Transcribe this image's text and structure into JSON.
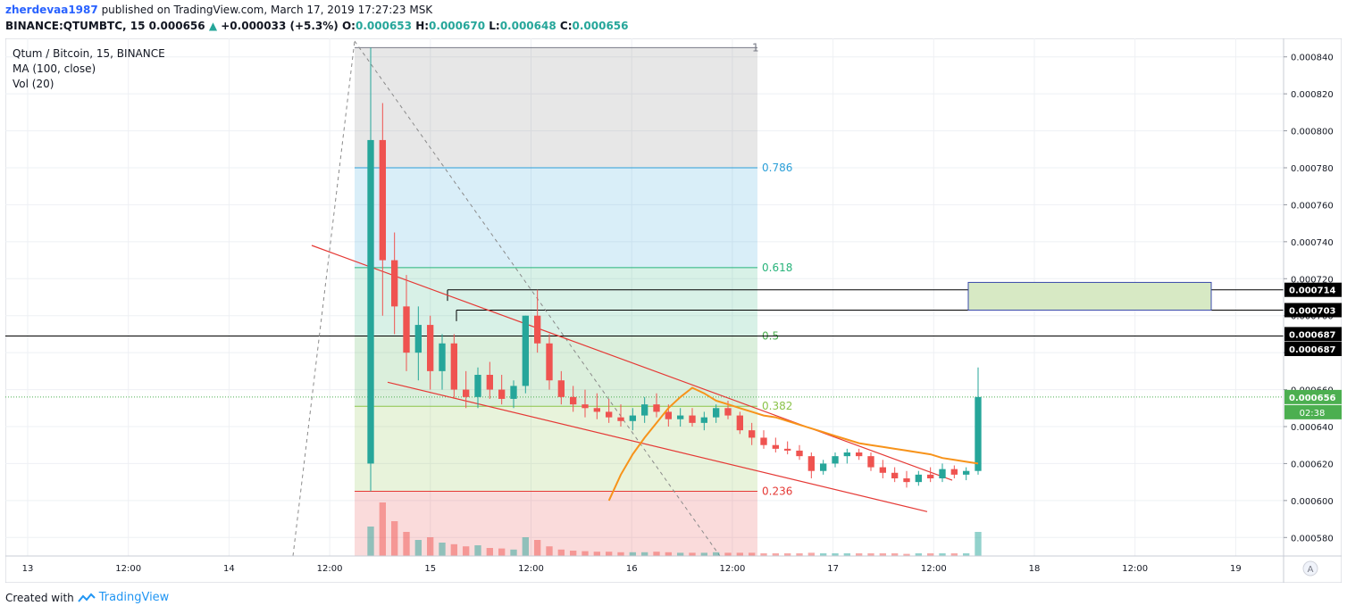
{
  "header": {
    "author": "zherdevaa1987",
    "published": "published on TradingView.com, March 17, 2019 17:27:23 MSK",
    "symbol": "BINANCE:QTUMBTC, 15",
    "last": "0.000656",
    "change_arrow": "▲",
    "change": "+0.000033 (+5.3%)",
    "o_label": "O:",
    "o": "0.000653",
    "h_label": "H:",
    "h": "0.000670",
    "l_label": "L:",
    "l": "0.000648",
    "c_label": "C:",
    "c": "0.000656"
  },
  "legend": {
    "title": "Qtum / Bitcoin, 15, BINANCE",
    "ma": "MA (100, close)",
    "vol": "Vol (20)"
  },
  "footer": {
    "created_with": "Created with",
    "brand": "TradingView"
  },
  "colors": {
    "up": "#26a69a",
    "down": "#ef5350",
    "ma": "#f7931a",
    "fib_0786": "#2b9fd8",
    "fib_0618": "#27b37a",
    "fib_05": "#4caf50",
    "fib_0382": "#8bc34a",
    "fib_0236": "#e53935",
    "trendline": "#e53935",
    "price_tag": "#4caf50",
    "box_fill": "#d7e9c4",
    "box_border": "#3949ab"
  },
  "chart_data": {
    "type": "candlestick",
    "ylim": [
      0.00057,
      0.00085
    ],
    "x_ticks": [
      "13",
      "12:00",
      "14",
      "12:00",
      "15",
      "12:00",
      "16",
      "12:00",
      "17",
      "12:00",
      "18",
      "12:00",
      "19"
    ],
    "y_ticks": [
      "0.000840",
      "0.000820",
      "0.000800",
      "0.000780",
      "0.000760",
      "0.000740",
      "0.000720",
      "0.000700",
      "0.000680",
      "0.000660",
      "0.000640",
      "0.000620",
      "0.000600",
      "0.000580"
    ],
    "fib_levels": [
      {
        "label": "1",
        "value": 0.000845
      },
      {
        "label": "0.786",
        "value": 0.00078
      },
      {
        "label": "0.618",
        "value": 0.000726
      },
      {
        "label": "0.5",
        "value": 0.000689
      },
      {
        "label": "0.382",
        "value": 0.000651
      },
      {
        "label": "0.236",
        "value": 0.000605
      }
    ],
    "horizontal_levels": [
      "0.000714",
      "0.000703",
      "0.000687",
      "0.000687"
    ],
    "current_price": {
      "value": 0.000656,
      "label": "0.000656",
      "countdown": "02:38"
    },
    "target_box": {
      "from": 0.000703,
      "to": 0.000714
    },
    "ohlc": [
      {
        "o": 0.00062,
        "h": 0.000845,
        "l": 0.000605,
        "c": 0.000795
      },
      {
        "o": 0.000795,
        "h": 0.000815,
        "l": 0.0007,
        "c": 0.00073
      },
      {
        "o": 0.00073,
        "h": 0.000745,
        "l": 0.00069,
        "c": 0.000705
      },
      {
        "o": 0.000705,
        "h": 0.000722,
        "l": 0.00067,
        "c": 0.00068
      },
      {
        "o": 0.00068,
        "h": 0.000705,
        "l": 0.000665,
        "c": 0.000695
      },
      {
        "o": 0.000695,
        "h": 0.0007,
        "l": 0.00066,
        "c": 0.00067
      },
      {
        "o": 0.00067,
        "h": 0.00069,
        "l": 0.00066,
        "c": 0.000685
      },
      {
        "o": 0.000685,
        "h": 0.00069,
        "l": 0.000655,
        "c": 0.00066
      },
      {
        "o": 0.00066,
        "h": 0.00067,
        "l": 0.00065,
        "c": 0.000656
      },
      {
        "o": 0.000656,
        "h": 0.000672,
        "l": 0.00065,
        "c": 0.000668
      },
      {
        "o": 0.000668,
        "h": 0.000675,
        "l": 0.000655,
        "c": 0.00066
      },
      {
        "o": 0.00066,
        "h": 0.000668,
        "l": 0.000652,
        "c": 0.000655
      },
      {
        "o": 0.000655,
        "h": 0.000665,
        "l": 0.00065,
        "c": 0.000662
      },
      {
        "o": 0.000662,
        "h": 0.0007,
        "l": 0.000658,
        "c": 0.0007
      },
      {
        "o": 0.0007,
        "h": 0.000714,
        "l": 0.00068,
        "c": 0.000685
      },
      {
        "o": 0.000685,
        "h": 0.00069,
        "l": 0.00066,
        "c": 0.000665
      },
      {
        "o": 0.000665,
        "h": 0.00067,
        "l": 0.000652,
        "c": 0.000656
      },
      {
        "o": 0.000656,
        "h": 0.000662,
        "l": 0.000648,
        "c": 0.000652
      },
      {
        "o": 0.000652,
        "h": 0.00066,
        "l": 0.000645,
        "c": 0.00065
      },
      {
        "o": 0.00065,
        "h": 0.000658,
        "l": 0.000644,
        "c": 0.000648
      },
      {
        "o": 0.000648,
        "h": 0.000655,
        "l": 0.000642,
        "c": 0.000645
      },
      {
        "o": 0.000645,
        "h": 0.000652,
        "l": 0.00064,
        "c": 0.000643
      },
      {
        "o": 0.000643,
        "h": 0.00065,
        "l": 0.000638,
        "c": 0.000646
      },
      {
        "o": 0.000646,
        "h": 0.000656,
        "l": 0.000642,
        "c": 0.000652
      },
      {
        "o": 0.000652,
        "h": 0.000658,
        "l": 0.000645,
        "c": 0.000648
      },
      {
        "o": 0.000648,
        "h": 0.000652,
        "l": 0.00064,
        "c": 0.000644
      },
      {
        "o": 0.000644,
        "h": 0.00065,
        "l": 0.00064,
        "c": 0.000646
      },
      {
        "o": 0.000646,
        "h": 0.00065,
        "l": 0.00064,
        "c": 0.000642
      },
      {
        "o": 0.000642,
        "h": 0.000648,
        "l": 0.000638,
        "c": 0.000645
      },
      {
        "o": 0.000645,
        "h": 0.000652,
        "l": 0.000642,
        "c": 0.00065
      },
      {
        "o": 0.00065,
        "h": 0.000654,
        "l": 0.000644,
        "c": 0.000646
      },
      {
        "o": 0.000646,
        "h": 0.000648,
        "l": 0.000636,
        "c": 0.000638
      },
      {
        "o": 0.000638,
        "h": 0.000642,
        "l": 0.00063,
        "c": 0.000634
      },
      {
        "o": 0.000634,
        "h": 0.000638,
        "l": 0.000628,
        "c": 0.00063
      },
      {
        "o": 0.00063,
        "h": 0.000634,
        "l": 0.000626,
        "c": 0.000628
      },
      {
        "o": 0.000628,
        "h": 0.000632,
        "l": 0.000625,
        "c": 0.000627
      },
      {
        "o": 0.000627,
        "h": 0.00063,
        "l": 0.000622,
        "c": 0.000624
      },
      {
        "o": 0.000624,
        "h": 0.000626,
        "l": 0.000612,
        "c": 0.000616
      },
      {
        "o": 0.000616,
        "h": 0.000622,
        "l": 0.000614,
        "c": 0.00062
      },
      {
        "o": 0.00062,
        "h": 0.000626,
        "l": 0.000618,
        "c": 0.000624
      },
      {
        "o": 0.000624,
        "h": 0.000628,
        "l": 0.00062,
        "c": 0.000626
      },
      {
        "o": 0.000626,
        "h": 0.000628,
        "l": 0.000622,
        "c": 0.000624
      },
      {
        "o": 0.000624,
        "h": 0.000626,
        "l": 0.000616,
        "c": 0.000618
      },
      {
        "o": 0.000618,
        "h": 0.000622,
        "l": 0.000612,
        "c": 0.000615
      },
      {
        "o": 0.000615,
        "h": 0.000618,
        "l": 0.00061,
        "c": 0.000612
      },
      {
        "o": 0.000612,
        "h": 0.000616,
        "l": 0.000607,
        "c": 0.00061
      },
      {
        "o": 0.00061,
        "h": 0.000616,
        "l": 0.000608,
        "c": 0.000614
      },
      {
        "o": 0.000614,
        "h": 0.000618,
        "l": 0.00061,
        "c": 0.000612
      },
      {
        "o": 0.000612,
        "h": 0.00062,
        "l": 0.00061,
        "c": 0.000617
      },
      {
        "o": 0.000617,
        "h": 0.000619,
        "l": 0.000612,
        "c": 0.000614
      },
      {
        "o": 0.000614,
        "h": 0.000618,
        "l": 0.000611,
        "c": 0.000616
      },
      {
        "o": 0.000616,
        "h": 0.000672,
        "l": 0.000614,
        "c": 0.000656
      }
    ],
    "ma100": [
      null,
      null,
      null,
      null,
      null,
      null,
      null,
      null,
      null,
      null,
      null,
      null,
      null,
      null,
      null,
      null,
      null,
      null,
      null,
      null,
      0.0006,
      0.000614,
      0.000625,
      0.000634,
      0.000642,
      0.00065,
      0.000656,
      0.000661,
      0.000658,
      0.000654,
      0.000652,
      0.00065,
      0.000648,
      0.000646,
      0.000645,
      0.000643,
      0.000641,
      0.000639,
      0.000637,
      0.000635,
      0.000633,
      0.000631,
      0.00063,
      0.000629,
      0.000628,
      0.000627,
      0.000626,
      0.000625,
      0.000623,
      0.000622,
      0.000621,
      0.00062
    ],
    "volume": [
      0.55,
      1.0,
      0.65,
      0.45,
      0.3,
      0.35,
      0.25,
      0.22,
      0.18,
      0.2,
      0.15,
      0.14,
      0.12,
      0.35,
      0.3,
      0.18,
      0.12,
      0.1,
      0.09,
      0.08,
      0.08,
      0.07,
      0.07,
      0.07,
      0.08,
      0.07,
      0.06,
      0.06,
      0.06,
      0.07,
      0.06,
      0.06,
      0.06,
      0.05,
      0.05,
      0.05,
      0.05,
      0.06,
      0.05,
      0.05,
      0.05,
      0.05,
      0.05,
      0.05,
      0.05,
      0.04,
      0.05,
      0.05,
      0.05,
      0.05,
      0.05,
      0.45
    ]
  }
}
